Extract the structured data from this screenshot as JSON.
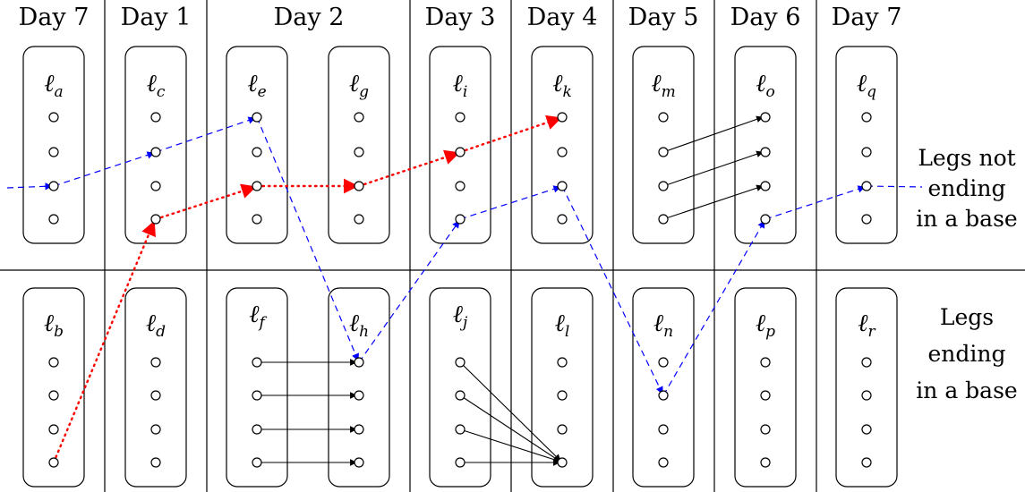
{
  "days": [
    "Day 7",
    "Day 1",
    "Day 2",
    "Day 3",
    "Day 4",
    "Day 5",
    "Day 6",
    "Day 7"
  ],
  "legs": {
    "a": {
      "sym": "ℓ",
      "sub": "a"
    },
    "b": {
      "sym": "ℓ",
      "sub": "b"
    },
    "c": {
      "sym": "ℓ",
      "sub": "c"
    },
    "d": {
      "sym": "ℓ",
      "sub": "d"
    },
    "e": {
      "sym": "ℓ",
      "sub": "e"
    },
    "f": {
      "sym": "ℓ",
      "sub": "f"
    },
    "g": {
      "sym": "ℓ",
      "sub": "g"
    },
    "h": {
      "sym": "ℓ",
      "sub": "h"
    },
    "i": {
      "sym": "ℓ",
      "sub": "i"
    },
    "j": {
      "sym": "ℓ",
      "sub": "j"
    },
    "k": {
      "sym": "ℓ",
      "sub": "k"
    },
    "l": {
      "sym": "ℓ",
      "sub": "l"
    },
    "m": {
      "sym": "ℓ",
      "sub": "m"
    },
    "n": {
      "sym": "ℓ",
      "sub": "n"
    },
    "o": {
      "sym": "ℓ",
      "sub": "o"
    },
    "p": {
      "sym": "ℓ",
      "sub": "p"
    },
    "q": {
      "sym": "ℓ",
      "sub": "q"
    },
    "r": {
      "sym": "ℓ",
      "sub": "r"
    }
  },
  "side_labels": {
    "top": [
      "Legs not",
      "ending",
      "in a base"
    ],
    "bottom": [
      "Legs",
      "ending",
      "in a base"
    ]
  },
  "colors": {
    "line": "#000000",
    "blue_path": "#0000ff",
    "red_path": "#ff0000"
  }
}
